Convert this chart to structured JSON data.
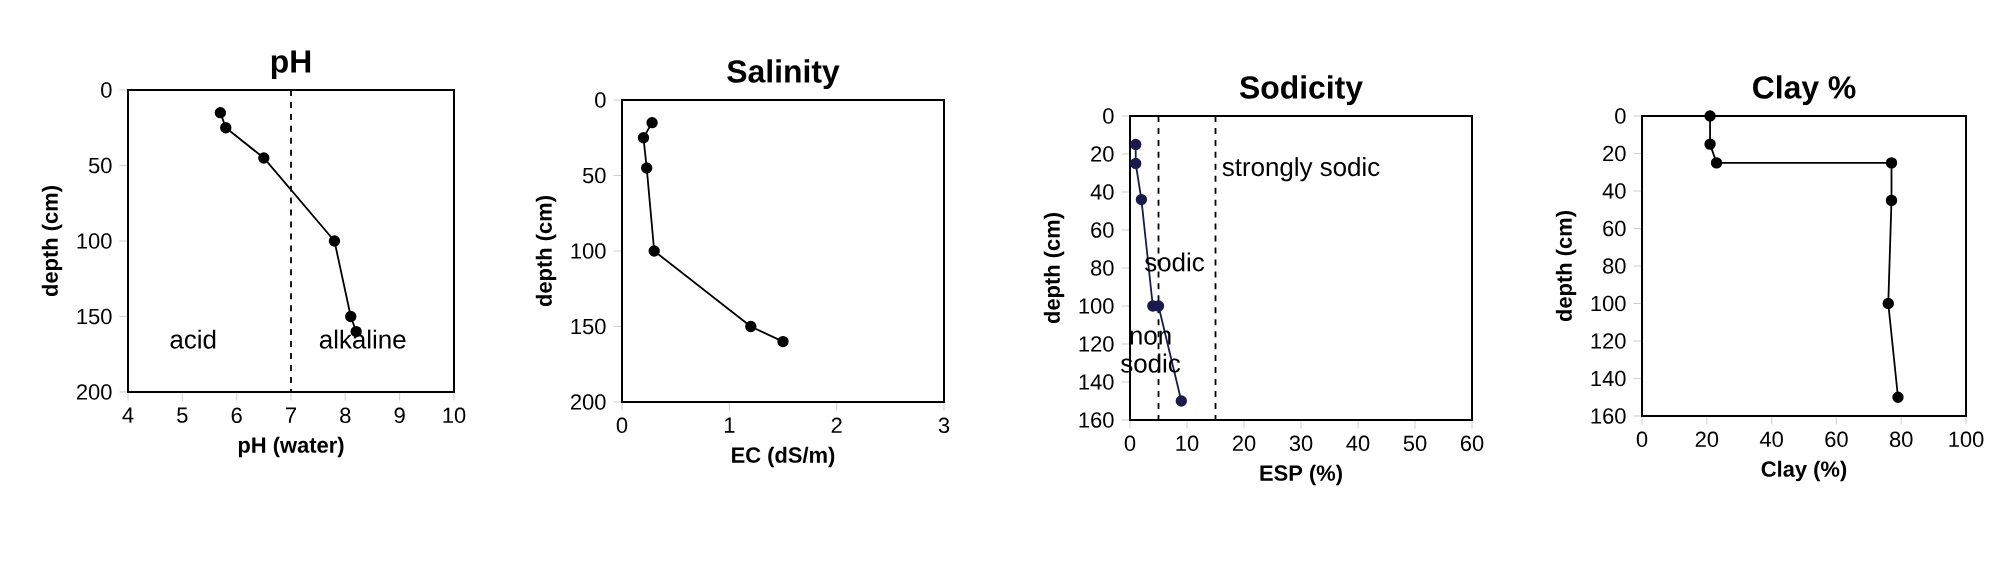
{
  "chart_data": [
    {
      "type": "line",
      "title": "pH",
      "xlabel": "pH (water)",
      "ylabel": "depth (cm)",
      "marker": "circle",
      "xlim": [
        4,
        10
      ],
      "ylim": [
        200,
        0
      ],
      "xticks": [
        4,
        5,
        6,
        7,
        8,
        9,
        10
      ],
      "yticks": [
        0,
        50,
        100,
        150,
        200
      ],
      "series": [
        {
          "color": "#000000",
          "x": [
            5.7,
            5.8,
            6.5,
            7.8,
            8.1,
            8.2
          ],
          "values": [
            15,
            25,
            45,
            100,
            150,
            160
          ]
        }
      ],
      "ref_lines": [
        {
          "axis": "x",
          "value": 7,
          "line_style": "dashed",
          "color": "#000000"
        }
      ],
      "annotations": [
        "acid",
        "alkaline"
      ]
    },
    {
      "type": "line",
      "title": "Salinity",
      "xlabel": "EC (dS/m)",
      "ylabel": "depth (cm)",
      "marker": "circle",
      "xlim": [
        0,
        3
      ],
      "ylim": [
        200,
        0
      ],
      "xticks": [
        0,
        1,
        2,
        3
      ],
      "yticks": [
        0,
        50,
        100,
        150,
        200
      ],
      "series": [
        {
          "color": "#000000",
          "x": [
            0.28,
            0.2,
            0.23,
            0.3,
            1.2,
            1.5
          ],
          "values": [
            15,
            25,
            45,
            100,
            150,
            160
          ]
        }
      ]
    },
    {
      "type": "line",
      "title": "Sodicity",
      "xlabel": "ESP (%)",
      "ylabel": "depth (cm)",
      "marker": "circle",
      "xlim": [
        0,
        60
      ],
      "ylim": [
        160,
        0
      ],
      "xticks": [
        0,
        10,
        20,
        30,
        40,
        50,
        60
      ],
      "yticks": [
        0,
        20,
        40,
        60,
        80,
        100,
        120,
        140,
        160
      ],
      "series": [
        {
          "color": "#1a1a4d",
          "x": [
            1,
            1,
            2,
            4,
            5,
            9
          ],
          "values": [
            15,
            25,
            44,
            100,
            100,
            150
          ]
        }
      ],
      "ref_lines": [
        {
          "axis": "x",
          "value": 5,
          "line_style": "dashed",
          "color": "#000000"
        },
        {
          "axis": "x",
          "value": 15,
          "line_style": "dashed",
          "color": "#000000"
        }
      ],
      "annotations": [
        "strongly sodic",
        "sodic",
        "non sodic"
      ]
    },
    {
      "type": "line",
      "title": "Clay %",
      "xlabel": "Clay (%)",
      "ylabel": "depth (cm)",
      "marker": "circle",
      "xlim": [
        0,
        100
      ],
      "ylim": [
        160,
        0
      ],
      "xticks": [
        0,
        20,
        40,
        60,
        80,
        100
      ],
      "yticks": [
        0,
        20,
        40,
        60,
        80,
        100,
        120,
        140,
        160
      ],
      "series": [
        {
          "color": "#000000",
          "x": [
            21,
            21,
            23,
            77,
            77,
            76,
            79
          ],
          "values": [
            0,
            15,
            25,
            25,
            45,
            100,
            150
          ]
        }
      ]
    }
  ]
}
